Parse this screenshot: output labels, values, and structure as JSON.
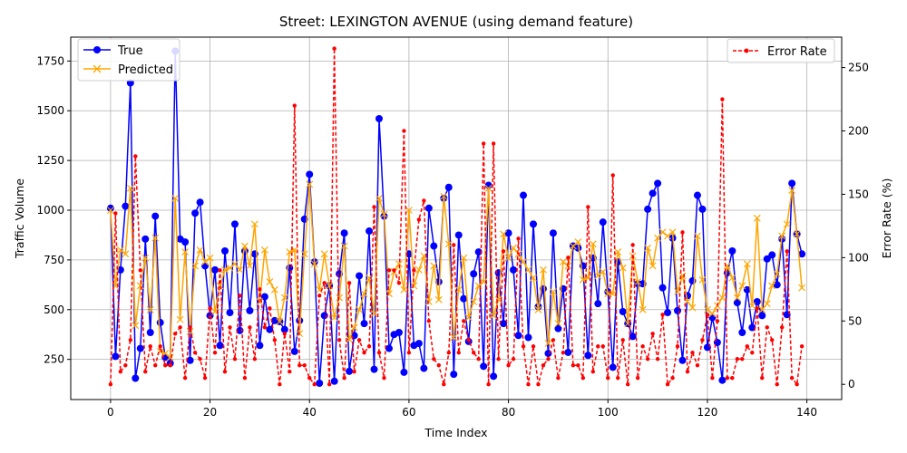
{
  "colors": {
    "true_series": "#0000ff",
    "predicted_series": "#ffa500",
    "error_series": "#ff0000",
    "grid": "#b0b0b0",
    "axis": "#000000"
  },
  "chart_data": {
    "type": "line",
    "title": "Street: LEXINGTON AVENUE (using demand feature)",
    "xlabel": "Time Index",
    "ylabel": "Traffic Volume",
    "y2label": "Error Rate (%)",
    "xlim": [
      -8,
      147
    ],
    "ylim": [
      48,
      1870
    ],
    "y2lim": [
      -12,
      274
    ],
    "xticks": [
      0,
      20,
      40,
      60,
      80,
      100,
      120,
      140
    ],
    "yticks": [
      250,
      500,
      750,
      1000,
      1250,
      1500,
      1750
    ],
    "y2ticks": [
      0,
      50,
      100,
      150,
      200,
      250
    ],
    "grid": true,
    "legend_left_position": "upper-left",
    "legend_right_position": "upper-right",
    "series": [
      {
        "name": "True",
        "axis": "left",
        "marker": "circle",
        "values": [
          1010,
          265,
          700,
          1020,
          1640,
          155,
          305,
          855,
          385,
          970,
          435,
          260,
          230,
          1800,
          855,
          840,
          245,
          985,
          1040,
          720,
          470,
          700,
          320,
          795,
          485,
          930,
          395,
          795,
          495,
          780,
          320,
          565,
          400,
          445,
          440,
          400,
          710,
          290,
          445,
          955,
          1180,
          740,
          130,
          470,
          620,
          140,
          680,
          885,
          190,
          370,
          670,
          430,
          895,
          200,
          1460,
          970,
          305,
          375,
          385,
          185,
          780,
          320,
          330,
          205,
          1010,
          820,
          640,
          1060,
          1115,
          175,
          875,
          555,
          340,
          680,
          790,
          215,
          1125,
          165,
          685,
          430,
          885,
          700,
          370,
          1075,
          360,
          930,
          515,
          605,
          280,
          885,
          405,
          605,
          285,
          820,
          810,
          720,
          270,
          760,
          530,
          940,
          590,
          210,
          740,
          490,
          430,
          365,
          630,
          630,
          1005,
          1085,
          1135,
          610,
          485,
          860,
          495,
          245,
          570,
          645,
          1075,
          1005,
          310,
          460,
          335,
          145,
          685,
          795,
          535,
          385,
          600,
          410,
          540,
          470,
          755,
          775,
          625,
          855,
          475,
          1135,
          880,
          780
        ]
      },
      {
        "name": "Predicted",
        "axis": "left",
        "marker": "x",
        "values": [
          1000,
          620,
          800,
          780,
          1110,
          420,
          620,
          760,
          500,
          860,
          290,
          280,
          260,
          1060,
          450,
          790,
          390,
          720,
          800,
          740,
          760,
          490,
          620,
          700,
          710,
          730,
          700,
          820,
          720,
          930,
          540,
          800,
          640,
          600,
          440,
          560,
          790,
          800,
          380,
          780,
          1130,
          730,
          600,
          780,
          620,
          460,
          560,
          820,
          350,
          410,
          500,
          580,
          660,
          480,
          1060,
          980,
          580,
          690,
          730,
          600,
          1000,
          620,
          700,
          770,
          540,
          720,
          550,
          1070,
          830,
          360,
          600,
          760,
          460,
          540,
          620,
          640,
          1110,
          470,
          550,
          880,
          760,
          810,
          780,
          740,
          700,
          660,
          500,
          700,
          330,
          590,
          430,
          740,
          720,
          820,
          840,
          650,
          660,
          830,
          670,
          690,
          580,
          580,
          790,
          710,
          430,
          770,
          640,
          500,
          810,
          720,
          860,
          890,
          870,
          890,
          590,
          670,
          540,
          510,
          870,
          650,
          500,
          480,
          520,
          560,
          720,
          660,
          560,
          620,
          730,
          520,
          960,
          500,
          530,
          620,
          680,
          870,
          930,
          1100,
          880,
          610
        ]
      },
      {
        "name": "Error Rate",
        "axis": "right",
        "marker": "dot",
        "dashed": true,
        "values": [
          0,
          135,
          10,
          15,
          35,
          180,
          90,
          10,
          30,
          15,
          30,
          15,
          15,
          40,
          45,
          5,
          45,
          25,
          20,
          5,
          60,
          25,
          90,
          10,
          45,
          20,
          70,
          5,
          45,
          20,
          75,
          45,
          60,
          35,
          0,
          40,
          10,
          220,
          15,
          15,
          5,
          0,
          70,
          80,
          0,
          265,
          35,
          5,
          80,
          10,
          35,
          25,
          30,
          140,
          25,
          5,
          90,
          90,
          80,
          200,
          25,
          90,
          130,
          145,
          50,
          20,
          15,
          0,
          25,
          110,
          25,
          50,
          35,
          25,
          20,
          190,
          0,
          190,
          20,
          105,
          15,
          20,
          115,
          30,
          0,
          30,
          0,
          15,
          20,
          35,
          5,
          25,
          100,
          15,
          15,
          5,
          140,
          10,
          30,
          30,
          5,
          165,
          5,
          35,
          0,
          110,
          5,
          30,
          20,
          40,
          20,
          55,
          0,
          5,
          30,
          120,
          10,
          25,
          15,
          35,
          55,
          5,
          50,
          225,
          5,
          5,
          20,
          20,
          30,
          25,
          60,
          5,
          45,
          35,
          0,
          45,
          105,
          5,
          0,
          30
        ]
      }
    ]
  }
}
